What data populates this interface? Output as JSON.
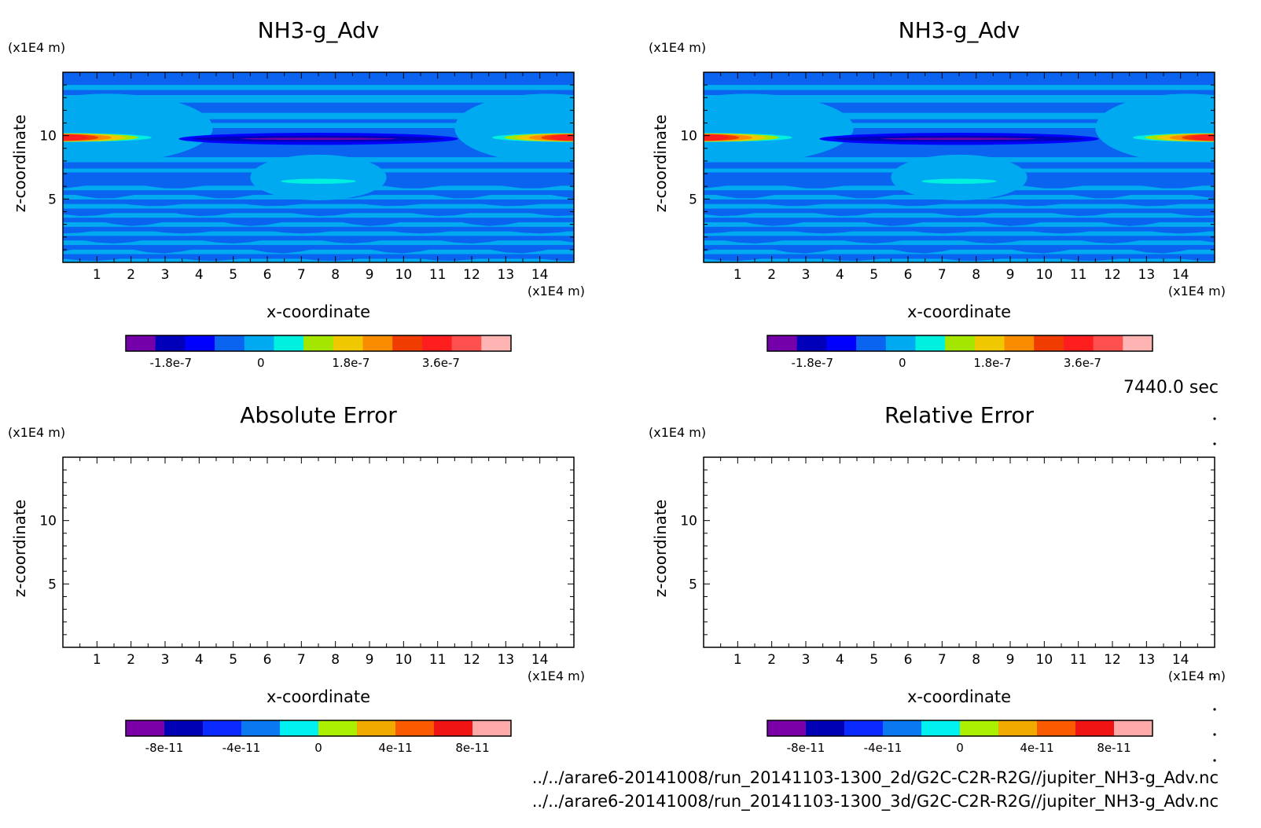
{
  "time_label": "7440.0 sec",
  "file_paths": [
    "../../arare6-20141008/run_20141103-1300_2d/G2C-C2R-R2G//jupiter_NH3-g_Adv.nc",
    "../../arare6-20141008/run_20141103-1300_3d/G2C-C2R-R2G//jupiter_NH3-g_Adv.nc"
  ],
  "colors": {
    "field_palette": [
      "#7300a8",
      "#0000bb",
      "#0000ff",
      "#0a64f0",
      "#00aaf0",
      "#00f0e0",
      "#a5e600",
      "#f0c800",
      "#fa8c00",
      "#f03c00",
      "#ff1e1e",
      "#ff5050",
      "#ffb4b4"
    ],
    "error_palette": [
      "#7a00a8",
      "#0000b4",
      "#0a2aff",
      "#0a78f0",
      "#00f0f0",
      "#aaf000",
      "#f0aa00",
      "#fa5a00",
      "#f01414",
      "#ffaaaa"
    ]
  },
  "chart_data": [
    {
      "type": "heatmap",
      "title": "NH3-g_Adv",
      "xlabel": "x-coordinate",
      "ylabel": "z-coordinate",
      "x_unit": "(x1E4 m)",
      "y_unit": "(x1E4 m)",
      "xlim": [
        0,
        15
      ],
      "ylim": [
        0,
        15
      ],
      "x_ticks": [
        "1",
        "2",
        "3",
        "4",
        "5",
        "6",
        "7",
        "8",
        "9",
        "10",
        "11",
        "12",
        "13",
        "14"
      ],
      "y_ticks": [
        "5",
        "10"
      ],
      "colorbar_ticks": [
        "-1.8e-7",
        "0",
        "1.8e-7",
        "3.6e-7"
      ],
      "colorbar_range": [
        -2.7e-07,
        5e-07
      ],
      "features": [
        {
          "x": [
            0,
            2.6
          ],
          "z": [
            9.5,
            10.2
          ],
          "level": "max"
        },
        {
          "x": [
            12.6,
            15
          ],
          "z": [
            9.5,
            10.2
          ],
          "level": "max"
        },
        {
          "x": [
            3.4,
            11.6
          ],
          "z": [
            9.4,
            10.1
          ],
          "level": "min"
        },
        {
          "x": [
            6.4,
            8.6
          ],
          "z": [
            6.2,
            6.6
          ],
          "level": "positive"
        }
      ]
    },
    {
      "type": "heatmap",
      "title": "NH3-g_Adv",
      "xlabel": "x-coordinate",
      "ylabel": "z-coordinate",
      "x_unit": "(x1E4 m)",
      "y_unit": "(x1E4 m)",
      "xlim": [
        0,
        15
      ],
      "ylim": [
        0,
        15
      ],
      "x_ticks": [
        "1",
        "2",
        "3",
        "4",
        "5",
        "6",
        "7",
        "8",
        "9",
        "10",
        "11",
        "12",
        "13",
        "14"
      ],
      "y_ticks": [
        "5",
        "10"
      ],
      "colorbar_ticks": [
        "-1.8e-7",
        "0",
        "1.8e-7",
        "3.6e-7"
      ],
      "colorbar_range": [
        -2.7e-07,
        5e-07
      ],
      "features": [
        {
          "x": [
            0,
            2.6
          ],
          "z": [
            9.5,
            10.2
          ],
          "level": "max"
        },
        {
          "x": [
            12.6,
            15
          ],
          "z": [
            9.5,
            10.2
          ],
          "level": "max"
        },
        {
          "x": [
            3.4,
            11.6
          ],
          "z": [
            9.4,
            10.1
          ],
          "level": "min"
        },
        {
          "x": [
            6.4,
            8.6
          ],
          "z": [
            6.2,
            6.6
          ],
          "level": "positive"
        }
      ]
    },
    {
      "type": "heatmap",
      "title": "Absolute Error",
      "xlabel": "x-coordinate",
      "ylabel": "z-coordinate",
      "x_unit": "(x1E4 m)",
      "y_unit": "(x1E4 m)",
      "xlim": [
        0,
        15
      ],
      "ylim": [
        0,
        15
      ],
      "x_ticks": [
        "1",
        "2",
        "3",
        "4",
        "5",
        "6",
        "7",
        "8",
        "9",
        "10",
        "11",
        "12",
        "13",
        "14"
      ],
      "y_ticks": [
        "5",
        "10"
      ],
      "colorbar_ticks": [
        "-8e-11",
        "-4e-11",
        "0",
        "4e-11",
        "8e-11"
      ],
      "colorbar_range": [
        -1e-10,
        1e-10
      ],
      "features": []
    },
    {
      "type": "heatmap",
      "title": "Relative Error",
      "xlabel": "x-coordinate",
      "ylabel": "z-coordinate",
      "x_unit": "(x1E4 m)",
      "y_unit": "(x1E4 m)",
      "xlim": [
        0,
        15
      ],
      "ylim": [
        0,
        15
      ],
      "x_ticks": [
        "1",
        "2",
        "3",
        "4",
        "5",
        "6",
        "7",
        "8",
        "9",
        "10",
        "11",
        "12",
        "13",
        "14"
      ],
      "y_ticks": [
        "5",
        "10"
      ],
      "colorbar_ticks": [
        "-8e-11",
        "-4e-11",
        "0",
        "4e-11",
        "8e-11"
      ],
      "colorbar_range": [
        -1e-10,
        1e-10
      ],
      "features": []
    }
  ]
}
